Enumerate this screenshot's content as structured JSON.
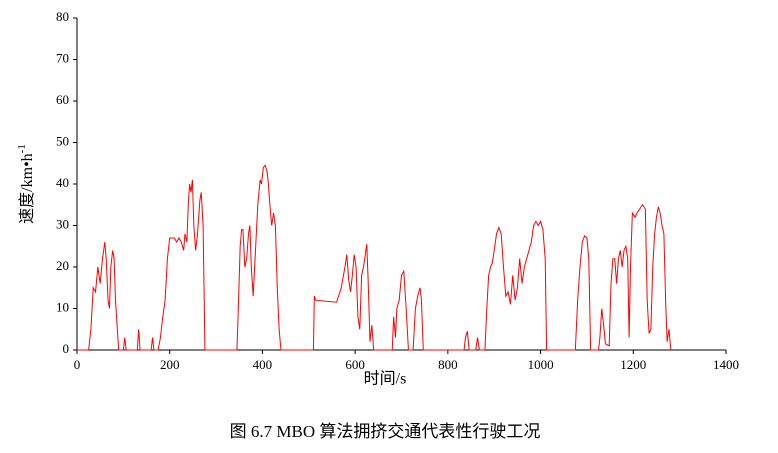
{
  "chart_data": {
    "type": "line",
    "caption": "图 6.7 MBO 算法拥挤交通代表性行驶工况",
    "xlabel": "时间/s",
    "ylabel": "速度/km•h",
    "ylabel_superscript": "-1",
    "xlim": [
      0,
      1400
    ],
    "xticks": [
      0,
      200,
      400,
      600,
      800,
      1000,
      1200,
      1400
    ],
    "ylim": [
      0,
      80
    ],
    "yticks": [
      0,
      10,
      20,
      30,
      40,
      50,
      60,
      70,
      80
    ],
    "grid": false,
    "x": [
      0,
      25,
      30,
      35,
      40,
      45,
      50,
      55,
      60,
      63,
      67,
      70,
      73,
      77,
      80,
      83,
      87,
      90,
      100,
      103,
      106,
      130,
      133,
      136,
      160,
      163,
      166,
      175,
      180,
      185,
      190,
      195,
      200,
      210,
      215,
      220,
      225,
      230,
      233,
      237,
      240,
      243,
      246,
      249,
      252,
      256,
      260,
      265,
      268,
      272,
      276,
      345,
      348,
      352,
      355,
      358,
      362,
      366,
      370,
      373,
      376,
      380,
      385,
      390,
      395,
      398,
      402,
      406,
      410,
      413,
      416,
      420,
      424,
      428,
      432,
      436,
      440,
      510,
      512,
      515,
      560,
      570,
      578,
      582,
      586,
      590,
      594,
      598,
      602,
      606,
      610,
      614,
      618,
      622,
      625,
      628,
      632,
      636,
      640,
      680,
      683,
      687,
      690,
      695,
      700,
      705,
      710,
      715,
      725,
      730,
      735,
      740,
      743,
      747,
      835,
      838,
      842,
      846,
      860,
      864,
      868,
      880,
      884,
      888,
      892,
      896,
      900,
      905,
      910,
      915,
      920,
      925,
      930,
      935,
      940,
      945,
      950,
      955,
      960,
      965,
      970,
      975,
      980,
      985,
      990,
      995,
      1000,
      1005,
      1010,
      1013,
      1075,
      1080,
      1085,
      1090,
      1095,
      1100,
      1104,
      1108,
      1125,
      1128,
      1132,
      1136,
      1140,
      1148,
      1152,
      1156,
      1160,
      1164,
      1168,
      1172,
      1176,
      1180,
      1184,
      1188,
      1191,
      1194,
      1198,
      1204,
      1208,
      1214,
      1220,
      1226,
      1230,
      1234,
      1238,
      1242,
      1246,
      1250,
      1254,
      1258,
      1262,
      1266,
      1270,
      1273,
      1277,
      1281
    ],
    "series": [
      {
        "color": "#ff0000",
        "values": [
          0,
          0,
          5,
          15,
          14,
          20,
          16,
          22,
          26,
          22,
          12,
          10,
          20,
          24,
          22,
          12,
          5,
          0,
          0,
          3,
          0,
          0,
          5,
          0,
          0,
          3,
          0,
          0,
          3,
          8,
          12,
          22,
          27,
          27,
          26,
          27,
          26,
          24,
          28,
          26,
          35,
          40,
          38,
          41,
          30,
          24,
          28,
          36,
          38,
          30,
          0,
          0,
          10,
          25,
          29,
          29,
          20,
          22,
          28,
          30,
          20,
          13,
          24,
          35,
          41,
          40,
          44,
          44.5,
          43,
          40,
          35,
          30,
          33,
          30,
          15,
          5,
          0,
          0,
          13,
          12,
          11.5,
          15,
          20,
          23,
          17,
          14,
          18,
          23,
          20,
          8,
          5,
          18,
          20,
          23,
          25.5,
          17,
          2,
          6,
          0,
          0,
          8,
          3,
          10,
          12,
          18,
          19,
          10,
          0,
          0,
          10,
          13,
          15,
          12,
          0,
          0,
          3,
          4.5,
          0,
          0,
          3,
          0,
          0,
          10,
          18,
          20,
          21,
          24,
          28,
          29.5,
          28,
          20,
          13,
          14,
          11,
          18,
          12,
          15,
          22,
          16,
          20,
          22,
          24,
          26,
          30,
          31,
          30,
          31,
          29,
          22,
          0,
          0,
          12,
          20,
          26,
          27.5,
          27,
          22,
          0,
          0,
          3,
          10,
          6,
          1.5,
          1,
          16,
          22,
          22,
          16,
          22,
          24,
          20,
          24,
          25,
          22,
          3,
          20,
          33,
          32,
          33,
          34,
          35,
          34,
          12,
          4,
          5,
          20,
          28,
          32,
          34.5,
          33,
          30,
          28,
          11,
          2,
          5,
          0
        ]
      }
    ]
  }
}
